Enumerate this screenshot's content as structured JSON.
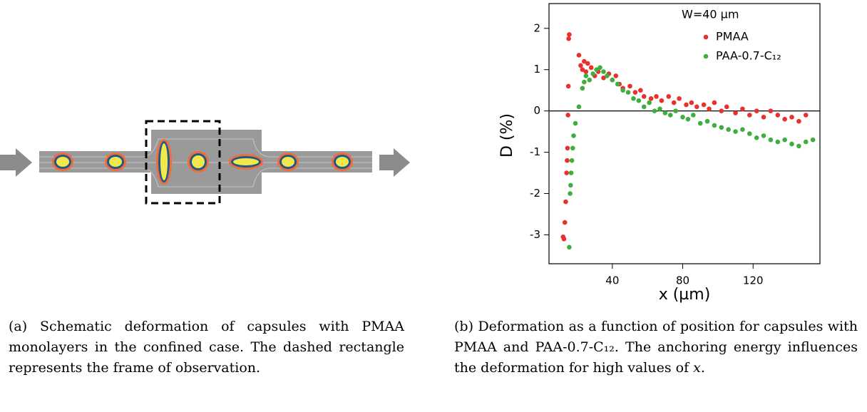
{
  "figure_a": {
    "label": "(a)",
    "caption": "Schematic deformation of capsules with PMAA monolayers in the confined case. The dashed rectangle represents the frame of observation."
  },
  "figure_b": {
    "label": "(b)",
    "caption": [
      "Deformation as a function of position for capsules with PMAA and PAA-0.7-C₁₂. The anchoring energy influences the deformation for high values of ",
      "x",
      "."
    ]
  },
  "chart_data": {
    "type": "scatter",
    "xlabel": "x (µm)",
    "ylabel": "D (%)",
    "legend_title": "W=40 µm",
    "legend": "upper right",
    "xlim": [
      4,
      158
    ],
    "ylim": [
      -3.7,
      2.6
    ],
    "xticks": [
      40,
      80,
      120
    ],
    "yticks": [
      -3,
      -2,
      -1,
      0,
      1,
      2
    ],
    "hline": 0,
    "series": [
      {
        "name": "PMAA",
        "color": "#e8312f",
        "x": [
          12,
          12.5,
          13,
          13.5,
          14,
          14.3,
          14.5,
          14.8,
          15,
          15.2,
          15.5,
          21,
          22,
          23,
          24,
          25,
          26,
          28,
          30,
          32,
          35,
          38,
          40,
          42,
          44,
          46,
          50,
          53,
          56,
          58,
          62,
          65,
          68,
          72,
          75,
          78,
          82,
          85,
          88,
          92,
          95,
          98,
          102,
          105,
          110,
          114,
          118,
          122,
          126,
          130,
          134,
          138,
          142,
          146,
          150
        ],
        "y": [
          -3.05,
          -3.1,
          -2.7,
          -2.2,
          -1.5,
          -1.2,
          -0.9,
          -0.1,
          0.6,
          1.75,
          1.85,
          1.35,
          1.1,
          1.0,
          1.2,
          0.95,
          1.15,
          1.05,
          0.85,
          0.95,
          0.8,
          0.9,
          0.75,
          0.85,
          0.65,
          0.55,
          0.6,
          0.45,
          0.5,
          0.35,
          0.3,
          0.35,
          0.25,
          0.35,
          0.2,
          0.3,
          0.15,
          0.2,
          0.1,
          0.15,
          0.05,
          0.2,
          0.0,
          0.1,
          -0.05,
          0.05,
          -0.1,
          0.0,
          -0.15,
          0.0,
          -0.1,
          -0.2,
          -0.15,
          -0.25,
          -0.1
        ]
      },
      {
        "name": "PAA-0.7-C₁₂",
        "color": "#3fae3f",
        "x": [
          15.5,
          16,
          16.3,
          16.6,
          17,
          17.5,
          18,
          19,
          21,
          23,
          24,
          25,
          27,
          29,
          31,
          33,
          35,
          37,
          40,
          43,
          46,
          49,
          52,
          55,
          58,
          61,
          64,
          67,
          70,
          73,
          76,
          80,
          83,
          86,
          90,
          94,
          98,
          102,
          106,
          110,
          114,
          118,
          122,
          126,
          130,
          134,
          138,
          142,
          146,
          150,
          154
        ],
        "y": [
          -3.3,
          -2.0,
          -1.8,
          -1.5,
          -1.2,
          -0.9,
          -0.6,
          -0.3,
          0.1,
          0.55,
          0.7,
          0.85,
          0.75,
          0.9,
          1.0,
          1.05,
          0.95,
          0.85,
          0.75,
          0.65,
          0.5,
          0.45,
          0.3,
          0.25,
          0.1,
          0.2,
          0.0,
          0.05,
          -0.05,
          -0.1,
          0.0,
          -0.15,
          -0.2,
          -0.1,
          -0.3,
          -0.25,
          -0.35,
          -0.4,
          -0.45,
          -0.5,
          -0.45,
          -0.55,
          -0.65,
          -0.6,
          -0.7,
          -0.75,
          -0.7,
          -0.8,
          -0.85,
          -0.75,
          -0.7
        ]
      }
    ]
  }
}
